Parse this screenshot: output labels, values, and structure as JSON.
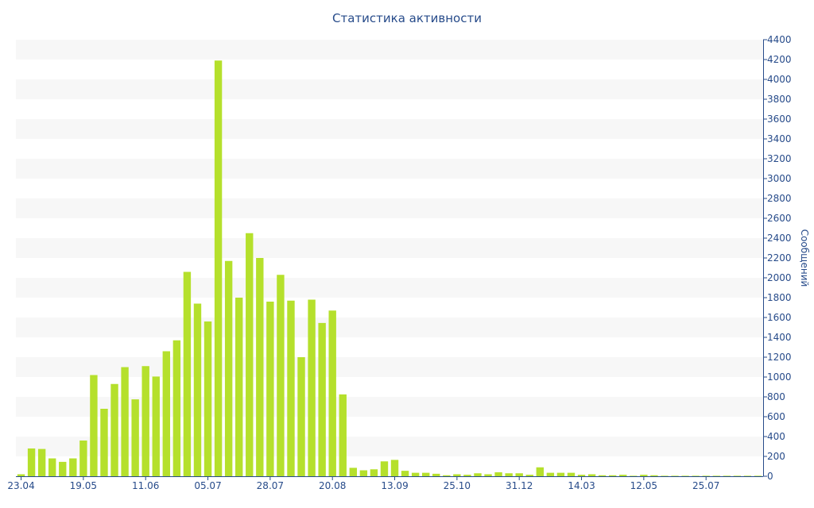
{
  "chart_data": {
    "type": "bar",
    "title": "Статистика активности",
    "ylabel": "Сообщений",
    "ylim": [
      0,
      4400
    ],
    "y_ticks": [
      0,
      200,
      400,
      600,
      800,
      1000,
      1200,
      1400,
      1600,
      1800,
      2000,
      2200,
      2400,
      2600,
      2800,
      3000,
      3200,
      3400,
      3600,
      3800,
      4000,
      4200,
      4400
    ],
    "x_tick_labels": [
      {
        "index": 0,
        "label": "23.04"
      },
      {
        "index": 6,
        "label": "19.05"
      },
      {
        "index": 12,
        "label": "11.06"
      },
      {
        "index": 18,
        "label": "05.07"
      },
      {
        "index": 24,
        "label": "28.07"
      },
      {
        "index": 30,
        "label": "20.08"
      },
      {
        "index": 36,
        "label": "13.09"
      },
      {
        "index": 42,
        "label": "25.10"
      },
      {
        "index": 48,
        "label": "31.12"
      },
      {
        "index": 54,
        "label": "14.03"
      },
      {
        "index": 60,
        "label": "12.05"
      },
      {
        "index": 66,
        "label": "25.07"
      }
    ],
    "values": [
      20,
      280,
      275,
      180,
      145,
      180,
      360,
      1020,
      680,
      930,
      1100,
      775,
      1110,
      1005,
      1260,
      1370,
      2060,
      1740,
      1560,
      4190,
      2170,
      1800,
      2450,
      2200,
      1760,
      2030,
      1770,
      1200,
      1780,
      1545,
      1670,
      825,
      85,
      60,
      70,
      150,
      165,
      55,
      35,
      35,
      25,
      10,
      20,
      15,
      30,
      20,
      40,
      30,
      30,
      15,
      90,
      35,
      35,
      35,
      15,
      20,
      10,
      10,
      15,
      5,
      15,
      10,
      5,
      5,
      5,
      5,
      5,
      5,
      5,
      5,
      5,
      5
    ],
    "grid": "alternating horizontal bands",
    "y_axis_position": "right",
    "colors": {
      "bar": "#b5e02c",
      "axis": "#274b8a",
      "band": "#f7f7f7"
    }
  }
}
